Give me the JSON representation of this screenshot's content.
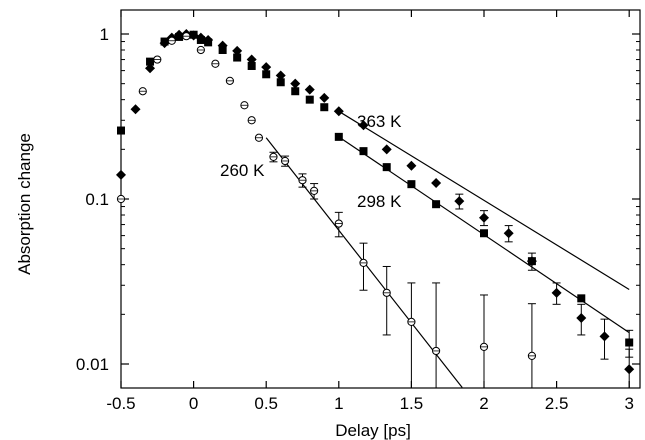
{
  "chart_data": {
    "type": "scatter",
    "xlabel": "Delay [ps]",
    "ylabel": "Absorption change",
    "xlim": [
      -0.5,
      3.0
    ],
    "ylim": [
      0.008,
      1.25
    ],
    "yscale": "log",
    "grid": false,
    "x_ticks": [
      -0.5,
      0,
      0.5,
      1,
      1.5,
      2,
      2.5,
      3
    ],
    "x_tick_labels": [
      "-0.5",
      "0",
      "0.5",
      "1",
      "1.5",
      "2",
      "2.5",
      "3"
    ],
    "y_ticks": [
      0.01,
      0.1,
      1
    ],
    "y_tick_labels": [
      "0.01",
      "0.1",
      "1"
    ],
    "annotations": [
      "363 K",
      "298 K",
      "260 K"
    ],
    "series": [
      {
        "marker": "diamond",
        "points": [
          {
            "x": -0.5,
            "y": 0.14
          },
          {
            "x": -0.4,
            "y": 0.35
          },
          {
            "x": -0.3,
            "y": 0.62
          },
          {
            "x": -0.2,
            "y": 0.88
          },
          {
            "x": -0.15,
            "y": 0.95
          },
          {
            "x": -0.1,
            "y": 0.99
          },
          {
            "x": -0.05,
            "y": 1.0
          },
          {
            "x": 0.0,
            "y": 0.98
          },
          {
            "x": 0.05,
            "y": 0.95
          },
          {
            "x": 0.1,
            "y": 0.92
          },
          {
            "x": 0.2,
            "y": 0.85
          },
          {
            "x": 0.3,
            "y": 0.79
          },
          {
            "x": 0.4,
            "y": 0.7
          },
          {
            "x": 0.5,
            "y": 0.63
          },
          {
            "x": 0.6,
            "y": 0.56
          },
          {
            "x": 0.7,
            "y": 0.5
          },
          {
            "x": 0.8,
            "y": 0.46
          },
          {
            "x": 0.9,
            "y": 0.41
          },
          {
            "x": 1.0,
            "y": 0.34
          },
          {
            "x": 1.17,
            "y": 0.28
          },
          {
            "x": 1.33,
            "y": 0.2
          },
          {
            "x": 1.5,
            "y": 0.159
          },
          {
            "x": 1.67,
            "y": 0.125
          },
          {
            "x": 1.83,
            "y": 0.097,
            "err": 0.01
          },
          {
            "x": 2.0,
            "y": 0.077,
            "err": 0.008
          },
          {
            "x": 2.17,
            "y": 0.062,
            "err": 0.007
          },
          {
            "x": 2.33,
            "y": 0.042,
            "err": 0.005
          },
          {
            "x": 2.5,
            "y": 0.027,
            "err": 0.004
          },
          {
            "x": 2.67,
            "y": 0.019,
            "err": 0.004
          },
          {
            "x": 2.83,
            "y": 0.0147,
            "err": 0.004
          },
          {
            "x": 3.0,
            "y": 0.0093,
            "err": 0.003
          }
        ],
        "fit": [
          [
            1.0,
            0.34
          ],
          [
            3.0,
            0.0283
          ]
        ]
      },
      {
        "marker": "square",
        "points": [
          {
            "x": -0.5,
            "y": 0.26
          },
          {
            "x": -0.3,
            "y": 0.68
          },
          {
            "x": -0.2,
            "y": 0.9
          },
          {
            "x": -0.1,
            "y": 0.96
          },
          {
            "x": 0.0,
            "y": 0.99
          },
          {
            "x": 0.05,
            "y": 0.92
          },
          {
            "x": 0.1,
            "y": 0.89
          },
          {
            "x": 0.2,
            "y": 0.8
          },
          {
            "x": 0.3,
            "y": 0.72
          },
          {
            "x": 0.4,
            "y": 0.64
          },
          {
            "x": 0.5,
            "y": 0.57
          },
          {
            "x": 0.6,
            "y": 0.51
          },
          {
            "x": 0.7,
            "y": 0.45
          },
          {
            "x": 0.8,
            "y": 0.4
          },
          {
            "x": 0.9,
            "y": 0.36
          },
          {
            "x": 1.0,
            "y": 0.238
          },
          {
            "x": 1.17,
            "y": 0.195
          },
          {
            "x": 1.33,
            "y": 0.156
          },
          {
            "x": 1.5,
            "y": 0.123
          },
          {
            "x": 1.67,
            "y": 0.093
          },
          {
            "x": 2.0,
            "y": 0.062
          },
          {
            "x": 2.33,
            "y": 0.042
          },
          {
            "x": 2.67,
            "y": 0.025
          },
          {
            "x": 3.0,
            "y": 0.0135,
            "err": 0.0025
          }
        ],
        "fit": [
          [
            1.0,
            0.238
          ],
          [
            3.0,
            0.0155
          ]
        ]
      },
      {
        "marker": "circle",
        "points": [
          {
            "x": -0.5,
            "y": 0.1
          },
          {
            "x": -0.35,
            "y": 0.45
          },
          {
            "x": -0.25,
            "y": 0.7
          },
          {
            "x": -0.15,
            "y": 0.91
          },
          {
            "x": -0.05,
            "y": 0.97
          },
          {
            "x": 0.05,
            "y": 0.8
          },
          {
            "x": 0.15,
            "y": 0.66
          },
          {
            "x": 0.25,
            "y": 0.52
          },
          {
            "x": 0.35,
            "y": 0.37
          },
          {
            "x": 0.4,
            "y": 0.3
          },
          {
            "x": 0.45,
            "y": 0.235
          },
          {
            "x": 0.55,
            "y": 0.18,
            "err": 0.012
          },
          {
            "x": 0.63,
            "y": 0.17,
            "err": 0.012
          },
          {
            "x": 0.75,
            "y": 0.13,
            "err": 0.012
          },
          {
            "x": 0.83,
            "y": 0.112,
            "err": 0.012
          },
          {
            "x": 1.0,
            "y": 0.071,
            "err": 0.012
          },
          {
            "x": 1.17,
            "y": 0.041,
            "err": 0.013
          },
          {
            "x": 1.33,
            "y": 0.027,
            "err": 0.012
          },
          {
            "x": 1.5,
            "y": 0.018,
            "err": 0.013
          },
          {
            "x": 1.67,
            "y": 0.012,
            "err": 0.019
          },
          {
            "x": 2.0,
            "y": 0.0127,
            "err": 0.0135
          },
          {
            "x": 2.33,
            "y": 0.0112,
            "err": 0.012
          }
        ],
        "fit": [
          [
            0.5,
            0.235
          ],
          [
            1.85,
            0.0072
          ]
        ]
      }
    ]
  }
}
